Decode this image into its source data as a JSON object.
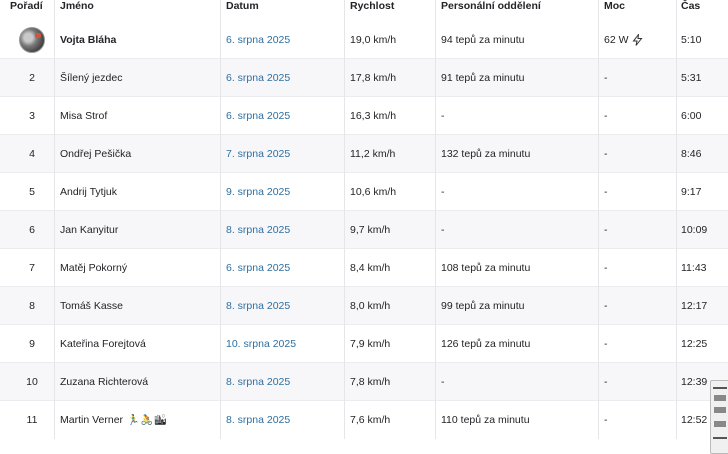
{
  "headers": {
    "rank": "Pořadí",
    "name": "Jméno",
    "date": "Datum",
    "speed": "Rychlost",
    "hr": "Personální oddělení",
    "power": "Moc",
    "time": "Čas"
  },
  "rows": [
    {
      "rank": "",
      "name": "Vojta Bláha",
      "date": "6. srpna 2025",
      "speed": "19,0 km/h",
      "hr": "94 tepů za minutu",
      "power": "62 W",
      "time": "5:10"
    },
    {
      "rank": "2",
      "name": "Šílený jezdec",
      "date": "6. srpna 2025",
      "speed": "17,8 km/h",
      "hr": "91 tepů za minutu",
      "power": "-",
      "time": "5:31"
    },
    {
      "rank": "3",
      "name": "Misa Strof",
      "date": "6. srpna 2025",
      "speed": "16,3 km/h",
      "hr": "-",
      "power": "-",
      "time": "6:00"
    },
    {
      "rank": "4",
      "name": "Ondřej Pešička",
      "date": "7. srpna 2025",
      "speed": "11,2 km/h",
      "hr": "132 tepů za minutu",
      "power": "-",
      "time": "8:46"
    },
    {
      "rank": "5",
      "name": "Andrij Tytjuk",
      "date": "9. srpna 2025",
      "speed": "10,6 km/h",
      "hr": "-",
      "power": "-",
      "time": "9:17"
    },
    {
      "rank": "6",
      "name": "Jan Kanyitur",
      "date": "8. srpna 2025",
      "speed": "9,7 km/h",
      "hr": "-",
      "power": "-",
      "time": "10:09"
    },
    {
      "rank": "7",
      "name": "Matěj Pokorný",
      "date": "6. srpna 2025",
      "speed": "8,4 km/h",
      "hr": "108 tepů za minutu",
      "power": "-",
      "time": "11:43"
    },
    {
      "rank": "8",
      "name": "Tomáš Kasse",
      "date": "8. srpna 2025",
      "speed": "8,0 km/h",
      "hr": "99 tepů za minutu",
      "power": "-",
      "time": "12:17"
    },
    {
      "rank": "9",
      "name": "Kateřina Forejtová",
      "date": "10. srpna 2025",
      "speed": "7,9 km/h",
      "hr": "126 tepů za minutu",
      "power": "-",
      "time": "12:25"
    },
    {
      "rank": "10",
      "name": "Zuzana Richterová",
      "date": "8. srpna 2025",
      "speed": "7,8 km/h",
      "hr": "-",
      "power": "-",
      "time": "12:39"
    },
    {
      "rank": "11",
      "name": "Martin Verner",
      "date": "8. srpna 2025",
      "speed": "7,6 km/h",
      "hr": "110 tepů za minutu",
      "power": "-",
      "time": "12:52"
    }
  ],
  "icons": {
    "avatar": "rider-avatar",
    "power": "lightning-bolt-icon",
    "name_emoji": "🏃‍♂️🚴🏙"
  },
  "colors": {
    "date_link": "#2f6f9f",
    "text": "#242428",
    "stripe": "#f7f7fa"
  }
}
